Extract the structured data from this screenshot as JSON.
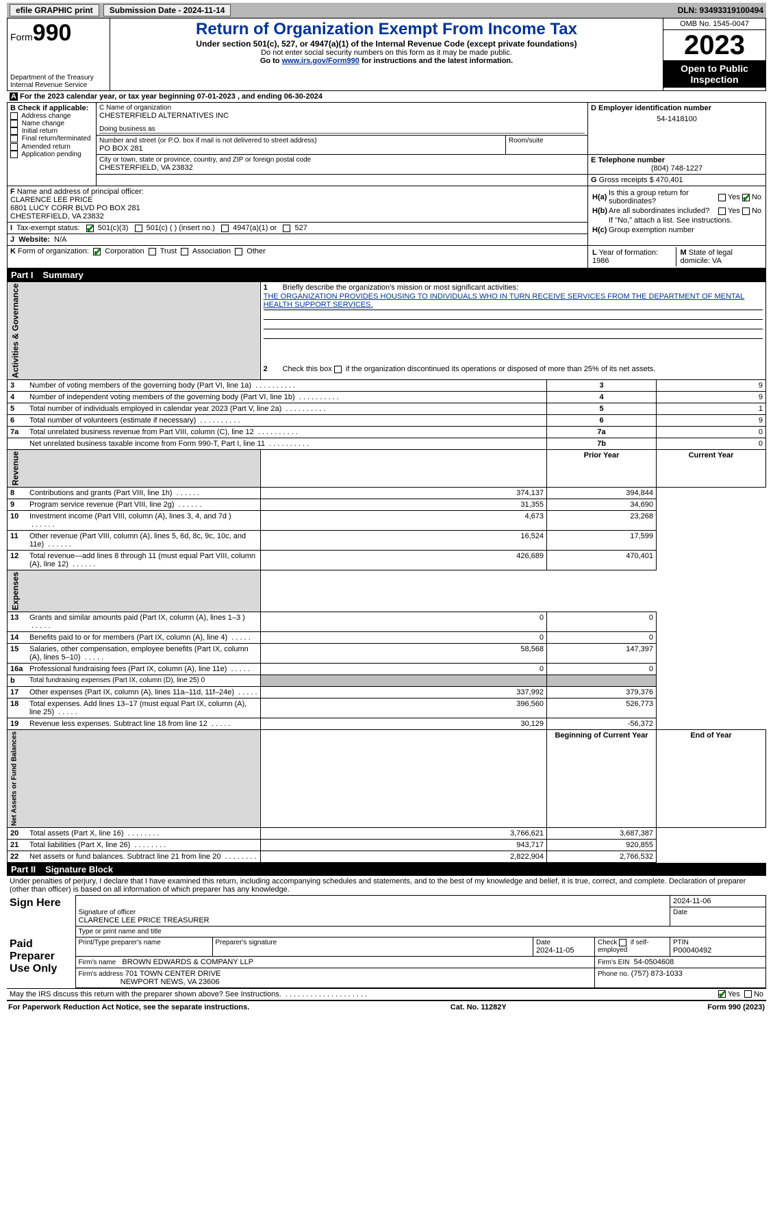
{
  "topbar": {
    "efile": "efile GRAPHIC print",
    "submission_label": "Submission Date - 2024-11-14",
    "dln_label": "DLN: 93493319100494"
  },
  "header": {
    "form_word": "Form",
    "form_num": "990",
    "title": "Return of Organization Exempt From Income Tax",
    "subtitle": "Under section 501(c), 527, or 4947(a)(1) of the Internal Revenue Code (except private foundations)",
    "note1": "Do not enter social security numbers on this form as it may be made public.",
    "note2_pre": "Go to ",
    "note2_link": "www.irs.gov/Form990",
    "note2_post": " for instructions and the latest information.",
    "dept": "Department of the Treasury",
    "irs": "Internal Revenue Service",
    "omb": "OMB No. 1545-0047",
    "year": "2023",
    "open": "Open to Public Inspection"
  },
  "lineA": {
    "pre": "A",
    "text": "For the 2023 calendar year, or tax year beginning 07-01-2023    , and ending 06-30-2024"
  },
  "boxB": {
    "title": "B Check if applicable:",
    "items": [
      "Address change",
      "Name change",
      "Initial return",
      "Final return/terminated",
      "Amended return",
      "Application pending"
    ]
  },
  "boxC": {
    "name_lbl": "C Name of organization",
    "name": "CHESTERFIELD ALTERNATIVES INC",
    "dba_lbl": "Doing business as",
    "street_lbl": "Number and street (or P.O. box if mail is not delivered to street address)",
    "street": "PO BOX 281",
    "room_lbl": "Room/suite",
    "city_lbl": "City or town, state or province, country, and ZIP or foreign postal code",
    "city": "CHESTERFIELD, VA  23832"
  },
  "boxD": {
    "lbl": "D Employer identification number",
    "val": "54-1418100"
  },
  "boxE": {
    "lbl": "E Telephone number",
    "val": "(804) 748-1227"
  },
  "boxG": {
    "lbl": "G",
    "txt": "Gross receipts $",
    "val": "470,401"
  },
  "boxF": {
    "lbl": "F",
    "txt": "Name and address of principal officer:",
    "l1": "CLARENCE LEE PRICE",
    "l2": "6801 LUCY CORR BLVD PO BOX 281",
    "l3": "CHESTERFIELD, VA  23832"
  },
  "boxH": {
    "a_lbl": "H(a)",
    "a_txt": "Is this a group return for subordinates?",
    "b_lbl": "H(b)",
    "b_txt": "Are all subordinates included?",
    "b_note": "If \"No,\" attach a list. See instructions.",
    "c_lbl": "H(c)",
    "c_txt": "Group exemption number",
    "yes": "Yes",
    "no": "No"
  },
  "boxI": {
    "lbl": "I",
    "txt": "Tax-exempt status:",
    "o1": "501(c)(3)",
    "o2": "501(c) (  ) (insert no.)",
    "o3": "4947(a)(1) or",
    "o4": "527"
  },
  "boxJ": {
    "lbl": "J",
    "txt": "Website:",
    "val": "N/A"
  },
  "boxK": {
    "lbl": "K",
    "txt": "Form of organization:",
    "o1": "Corporation",
    "o2": "Trust",
    "o3": "Association",
    "o4": "Other"
  },
  "boxL": {
    "lbl": "L",
    "txt": "Year of formation:",
    "val": "1986"
  },
  "boxM": {
    "lbl": "M",
    "txt": "State of legal domicile:",
    "val": "VA"
  },
  "part1": {
    "title": "Part I",
    "name": "Summary",
    "q1_lbl": "1",
    "q1_txt": "Briefly describe the organization's mission or most significant activities:",
    "mission": "THE ORGANIZATION PROVIDES HOUSING TO INDIVIDUALS WHO IN TURN RECEIVE SERVICES FROM THE DEPARTMENT OF MENTAL HEALTH SUPPORT SERVICES.",
    "q2_lbl": "2",
    "q2_txt": "Check this box          if the organization discontinued its operations or disposed of more than 25% of its net assets.",
    "sidebars": {
      "ag": "Activities & Governance",
      "rev": "Revenue",
      "exp": "Expenses",
      "net": "Net Assets or Fund Balances"
    },
    "ag_rows": [
      {
        "n": "3",
        "t": "Number of voting members of the governing body (Part VI, line 1a)",
        "v": "9"
      },
      {
        "n": "4",
        "t": "Number of independent voting members of the governing body (Part VI, line 1b)",
        "v": "9"
      },
      {
        "n": "5",
        "t": "Total number of individuals employed in calendar year 2023 (Part V, line 2a)",
        "v": "1"
      },
      {
        "n": "6",
        "t": "Total number of volunteers (estimate if necessary)",
        "v": "9"
      },
      {
        "n": "7a",
        "t": "Total unrelated business revenue from Part VIII, column (C), line 12",
        "v": "0"
      },
      {
        "n": "7b",
        "t": "Net unrelated business taxable income from Form 990-T, Part I, line 11",
        "v": "0",
        "nolabel": true
      }
    ],
    "hdr_prior": "Prior Year",
    "hdr_curr": "Current Year",
    "rev_rows": [
      {
        "n": "8",
        "t": "Contributions and grants (Part VIII, line 1h)",
        "p": "374,137",
        "c": "394,844"
      },
      {
        "n": "9",
        "t": "Program service revenue (Part VIII, line 2g)",
        "p": "31,355",
        "c": "34,690"
      },
      {
        "n": "10",
        "t": "Investment income (Part VIII, column (A), lines 3, 4, and 7d )",
        "p": "4,673",
        "c": "23,268"
      },
      {
        "n": "11",
        "t": "Other revenue (Part VIII, column (A), lines 5, 6d, 8c, 9c, 10c, and 11e)",
        "p": "16,524",
        "c": "17,599"
      },
      {
        "n": "12",
        "t": "Total revenue—add lines 8 through 11 (must equal Part VIII, column (A), line 12)",
        "p": "426,689",
        "c": "470,401"
      }
    ],
    "exp_rows": [
      {
        "n": "13",
        "t": "Grants and similar amounts paid (Part IX, column (A), lines 1–3 )",
        "p": "0",
        "c": "0"
      },
      {
        "n": "14",
        "t": "Benefits paid to or for members (Part IX, column (A), line 4)",
        "p": "0",
        "c": "0"
      },
      {
        "n": "15",
        "t": "Salaries, other compensation, employee benefits (Part IX, column (A), lines 5–10)",
        "p": "58,568",
        "c": "147,397"
      },
      {
        "n": "16a",
        "t": "Professional fundraising fees (Part IX, column (A), line 11e)",
        "p": "0",
        "c": "0"
      },
      {
        "n": "b",
        "t": "Total fundraising expenses (Part IX, column (D), line 25) 0",
        "shade": true
      },
      {
        "n": "17",
        "t": "Other expenses (Part IX, column (A), lines 11a–11d, 11f–24e)",
        "p": "337,992",
        "c": "379,376"
      },
      {
        "n": "18",
        "t": "Total expenses. Add lines 13–17 (must equal Part IX, column (A), line 25)",
        "p": "396,560",
        "c": "526,773"
      },
      {
        "n": "19",
        "t": "Revenue less expenses. Subtract line 18 from line 12",
        "p": "30,129",
        "c": "-56,372"
      }
    ],
    "hdr_beg": "Beginning of Current Year",
    "hdr_end": "End of Year",
    "net_rows": [
      {
        "n": "20",
        "t": "Total assets (Part X, line 16)",
        "p": "3,766,621",
        "c": "3,687,387"
      },
      {
        "n": "21",
        "t": "Total liabilities (Part X, line 26)",
        "p": "943,717",
        "c": "920,855"
      },
      {
        "n": "22",
        "t": "Net assets or fund balances. Subtract line 21 from line 20",
        "p": "2,822,904",
        "c": "2,766,532"
      }
    ]
  },
  "part2": {
    "title": "Part II",
    "name": "Signature Block",
    "decl": "Under penalties of perjury, I declare that I have examined this return, including accompanying schedules and statements, and to the best of my knowledge and belief, it is true, correct, and complete. Declaration of preparer (other than officer) is based on all information of which preparer has any knowledge.",
    "sign_here": "Sign Here",
    "sig_date": "2024-11-06",
    "sig_lbl": "Signature of officer",
    "officer": "CLARENCE LEE PRICE  TREASURER",
    "type_lbl": "Type or print name and title",
    "date_lbl": "Date",
    "paid": "Paid Preparer Use Only",
    "prep_name_lbl": "Print/Type preparer's name",
    "prep_sig_lbl": "Preparer's signature",
    "prep_date_lbl": "Date",
    "prep_date": "2024-11-05",
    "self_lbl": "Check         if self-employed",
    "ptin_lbl": "PTIN",
    "ptin": "P00040492",
    "firm_name_lbl": "Firm's name",
    "firm_name": "BROWN EDWARDS & COMPANY LLP",
    "firm_ein_lbl": "Firm's EIN",
    "firm_ein": "54-0504608",
    "firm_addr_lbl": "Firm's address",
    "firm_addr1": "701 TOWN CENTER DRIVE",
    "firm_addr2": "NEWPORT NEWS, VA  23606",
    "phone_lbl": "Phone no.",
    "phone": "(757) 873-1033",
    "discuss": "May the IRS discuss this return with the preparer shown above? See Instructions.",
    "yes": "Yes",
    "no": "No"
  },
  "footer": {
    "pra": "For Paperwork Reduction Act Notice, see the separate instructions.",
    "cat": "Cat. No. 11282Y",
    "form": "Form 990 (2023)"
  }
}
